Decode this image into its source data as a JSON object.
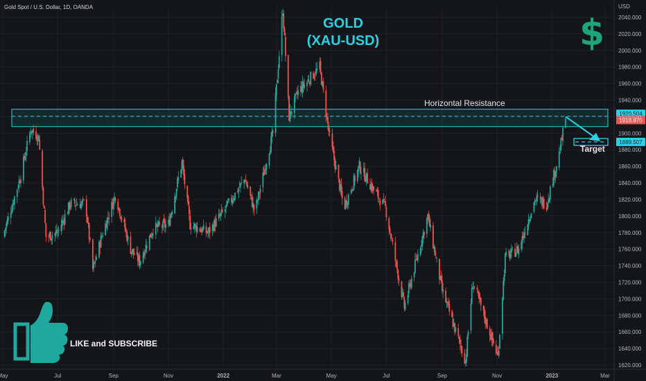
{
  "symbol_header": "Gold Spot / U.S. Dollar, 1D, OANDA",
  "title_line1": "GOLD",
  "title_line2": "(XAU-USD)",
  "dollar_sign": "$",
  "resistance_label": "Horizontal Resistance",
  "target_label": "Target",
  "like_label": "LIKE and SUBSCRIBE",
  "colors": {
    "background": "#141518",
    "up": "#26a69a",
    "down": "#ef5350",
    "accent": "#27d3e6",
    "dollar": "#1fa37c",
    "thumb": "#1fa89e"
  },
  "icons": [
    "thumbs-up-icon",
    "dollar-icon"
  ],
  "chart_data": {
    "type": "candlestick",
    "axis_unit": "USD",
    "x_tick_labels": [
      "May",
      "Jul",
      "Sep",
      "Nov",
      "2022",
      "Mar",
      "May",
      "Jul",
      "Sep",
      "Nov",
      "2023",
      "Mar"
    ],
    "y_tick_labels": [
      "1620.000",
      "1640.000",
      "1660.000",
      "1680.000",
      "1700.000",
      "1720.000",
      "1740.000",
      "1760.000",
      "1780.000",
      "1800.000",
      "1820.000",
      "1840.000",
      "1860.000",
      "1880.000",
      "1900.000",
      "1920.000",
      "1940.000",
      "1960.000",
      "1980.000",
      "2000.000",
      "2020.000",
      "2040.000"
    ],
    "ylim": [
      1615,
      2050
    ],
    "price_path": [
      {
        "x": "2021-05-01",
        "price": 1775
      },
      {
        "x": "2021-05-20",
        "price": 1845
      },
      {
        "x": "2021-06-01",
        "price": 1905
      },
      {
        "x": "2021-06-10",
        "price": 1895
      },
      {
        "x": "2021-06-18",
        "price": 1775
      },
      {
        "x": "2021-07-01",
        "price": 1780
      },
      {
        "x": "2021-07-15",
        "price": 1815
      },
      {
        "x": "2021-08-01",
        "price": 1815
      },
      {
        "x": "2021-08-09",
        "price": 1735
      },
      {
        "x": "2021-08-20",
        "price": 1780
      },
      {
        "x": "2021-09-03",
        "price": 1825
      },
      {
        "x": "2021-09-20",
        "price": 1760
      },
      {
        "x": "2021-09-30",
        "price": 1745
      },
      {
        "x": "2021-10-15",
        "price": 1785
      },
      {
        "x": "2021-11-01",
        "price": 1790
      },
      {
        "x": "2021-11-16",
        "price": 1865
      },
      {
        "x": "2021-11-25",
        "price": 1790
      },
      {
        "x": "2021-12-15",
        "price": 1780
      },
      {
        "x": "2022-01-01",
        "price": 1805
      },
      {
        "x": "2022-01-25",
        "price": 1845
      },
      {
        "x": "2022-02-05",
        "price": 1805
      },
      {
        "x": "2022-02-25",
        "price": 1900
      },
      {
        "x": "2022-03-08",
        "price": 2050
      },
      {
        "x": "2022-03-15",
        "price": 1920
      },
      {
        "x": "2022-03-25",
        "price": 1950
      },
      {
        "x": "2022-04-18",
        "price": 1980
      },
      {
        "x": "2022-04-29",
        "price": 1895
      },
      {
        "x": "2022-05-15",
        "price": 1810
      },
      {
        "x": "2022-06-01",
        "price": 1860
      },
      {
        "x": "2022-06-15",
        "price": 1835
      },
      {
        "x": "2022-06-30",
        "price": 1810
      },
      {
        "x": "2022-07-21",
        "price": 1690
      },
      {
        "x": "2022-08-16",
        "price": 1800
      },
      {
        "x": "2022-09-01",
        "price": 1710
      },
      {
        "x": "2022-09-27",
        "price": 1625
      },
      {
        "x": "2022-10-05",
        "price": 1720
      },
      {
        "x": "2022-11-02",
        "price": 1630
      },
      {
        "x": "2022-11-10",
        "price": 1750
      },
      {
        "x": "2022-11-25",
        "price": 1760
      },
      {
        "x": "2022-12-13",
        "price": 1820
      },
      {
        "x": "2022-12-26",
        "price": 1815
      },
      {
        "x": "2023-01-09",
        "price": 1875
      },
      {
        "x": "2023-01-16",
        "price": 1918.87
      }
    ],
    "annotations": {
      "resistance_zone": {
        "label": "Horizontal Resistance",
        "low": 1908,
        "high": 1929,
        "level": 1920.504
      },
      "target": {
        "label": "Target",
        "value": 1889.507
      },
      "current_price": 1918.87
    },
    "price_tags": [
      "1920.504",
      "1918.870",
      "1889.507"
    ]
  }
}
